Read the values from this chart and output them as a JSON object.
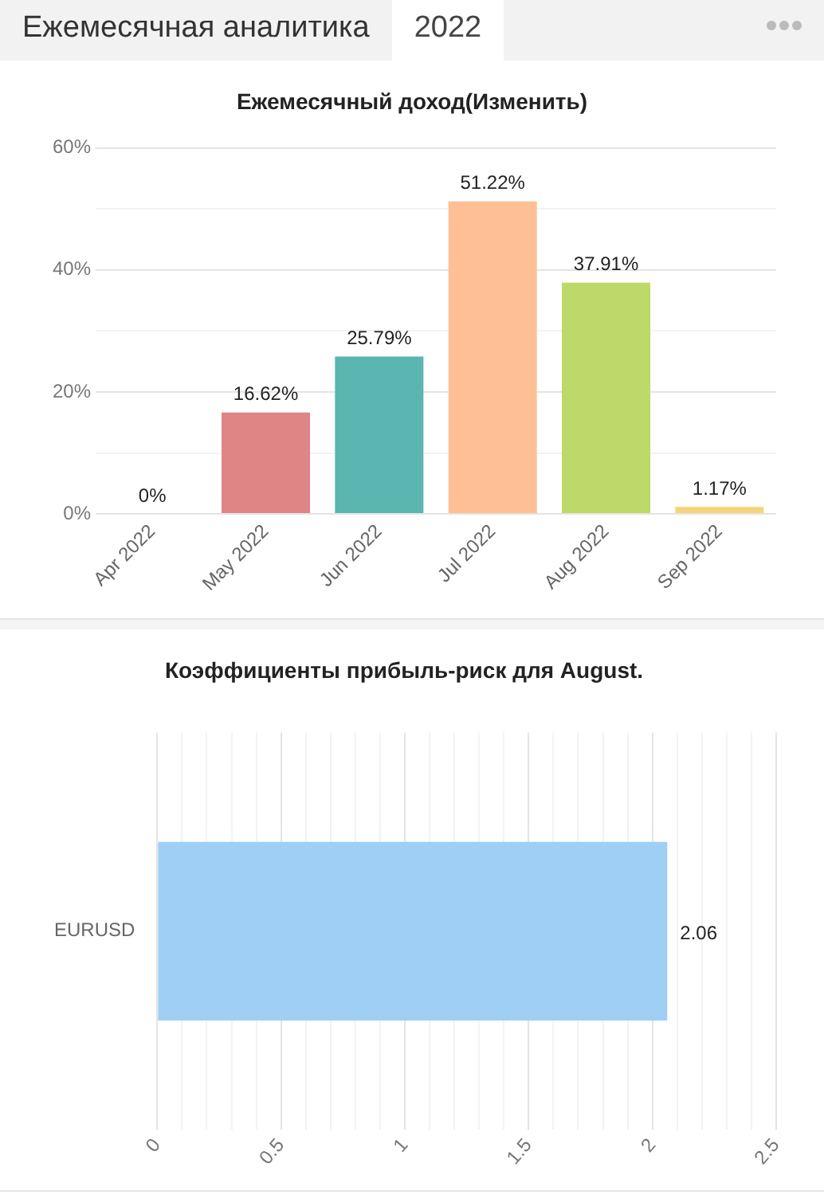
{
  "chart_data": [
    {
      "type": "bar",
      "title": "Ежемесячный доход(Изменить)",
      "annotations": [
        "Ежемесячная аналитика",
        "2022"
      ],
      "categories": [
        "Apr 2022",
        "May 2022",
        "Jun 2022",
        "Jul 2022",
        "Aug 2022",
        "Sep 2022"
      ],
      "values": [
        0,
        16.62,
        25.79,
        51.22,
        37.91,
        1.17
      ],
      "colors": [
        "#cccccc",
        "#e08585",
        "#5bb5b0",
        "#ffbf94",
        "#bcd96a",
        "#f5d57a"
      ],
      "value_labels": [
        "0%",
        "16.62%",
        "25.79%",
        "51.22%",
        "37.91%",
        "1.17%"
      ],
      "ylim": [
        0,
        60
      ],
      "yticks": [
        {
          "value": 0,
          "label": "0%"
        },
        {
          "value": 10,
          "label": null
        },
        {
          "value": 20,
          "label": "20%"
        },
        {
          "value": 30,
          "label": null
        },
        {
          "value": 40,
          "label": "40%"
        },
        {
          "value": 50,
          "label": null
        },
        {
          "value": 60,
          "label": "60%"
        }
      ],
      "grid": "y"
    },
    {
      "type": "bar",
      "orientation": "horizontal",
      "title": "Коэффициенты прибыль-риск для August.",
      "categories": [
        "EURUSD"
      ],
      "values": [
        2.06
      ],
      "colors": [
        "#a0cff5"
      ],
      "data_labels": true,
      "xlim": [
        0,
        2.5
      ],
      "xticks": [
        0,
        {
          "value": 0.1,
          "label": null
        },
        {
          "value": 0.2,
          "label": null
        },
        {
          "value": 0.3,
          "label": null
        },
        {
          "value": 0.4,
          "label": null
        },
        0.5,
        {
          "value": 0.6,
          "label": null
        },
        {
          "value": 0.7,
          "label": null
        },
        {
          "value": 0.8,
          "label": null
        },
        {
          "value": 0.9,
          "label": null
        },
        1,
        {
          "value": 1.1,
          "label": null
        },
        {
          "value": 1.2,
          "label": null
        },
        {
          "value": 1.3,
          "label": null
        },
        {
          "value": 1.4,
          "label": null
        },
        1.5,
        {
          "value": 1.6,
          "label": null
        },
        {
          "value": 1.7,
          "label": null
        },
        {
          "value": 1.8,
          "label": null
        },
        {
          "value": 1.9,
          "label": null
        },
        2,
        {
          "value": 2.1,
          "label": null
        },
        {
          "value": 2.2,
          "label": null
        },
        {
          "value": 2.3,
          "label": null
        },
        {
          "value": 2.4,
          "label": null
        },
        2.5
      ],
      "grid": "x"
    }
  ]
}
